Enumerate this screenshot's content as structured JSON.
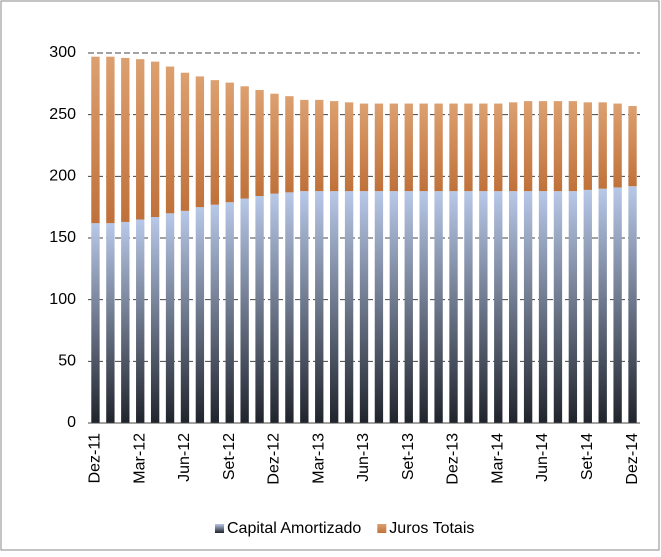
{
  "chart_data": {
    "type": "stacked_bar",
    "categories": [
      "Dez-11",
      null,
      null,
      "Mar-12",
      null,
      null,
      "Jun-12",
      null,
      null,
      "Set-12",
      null,
      null,
      "Dez-12",
      null,
      null,
      "Mar-13",
      null,
      null,
      "Jun-13",
      null,
      null,
      "Set-13",
      null,
      null,
      "Dez-13",
      null,
      null,
      "Mar-14",
      null,
      null,
      "Jun-14",
      null,
      null,
      "Set-14",
      null,
      null,
      "Dez-14"
    ],
    "series": [
      {
        "name": "Capital Amortizado",
        "color": "#b8c8e8",
        "values": [
          162,
          162,
          163,
          165,
          167,
          170,
          172,
          175,
          177,
          179,
          182,
          184,
          186,
          187,
          188,
          188,
          188,
          188,
          188,
          188,
          188,
          188,
          188,
          188,
          188,
          188,
          188,
          188,
          188,
          188,
          188,
          188,
          188,
          189,
          190,
          191,
          192
        ]
      },
      {
        "name": "Juros Totais",
        "color": "#c0713a",
        "values": [
          135,
          135,
          133,
          130,
          126,
          119,
          112,
          106,
          101,
          97,
          91,
          86,
          81,
          78,
          74,
          74,
          73,
          72,
          71,
          71,
          71,
          71,
          71,
          71,
          71,
          71,
          71,
          71,
          72,
          73,
          73,
          73,
          73,
          71,
          70,
          68,
          65
        ]
      }
    ],
    "ylim": [
      0,
      300
    ],
    "yticks": [
      0,
      50,
      100,
      150,
      200,
      250,
      300
    ],
    "grid": true,
    "legend": "bottom"
  }
}
